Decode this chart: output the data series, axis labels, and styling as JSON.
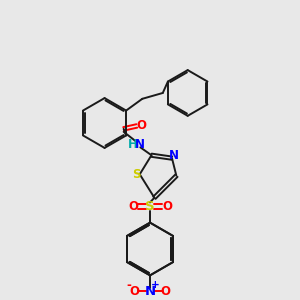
{
  "background_color": "#e8e8e8",
  "bond_color": "#1a1a1a",
  "N_color": "#0000ff",
  "O_color": "#ff0000",
  "S_color": "#cccc00",
  "NH_color": "#00aaaa",
  "figsize": [
    3.0,
    3.0
  ],
  "dpi": 100,
  "xlim": [
    0,
    10
  ],
  "ylim": [
    0,
    10
  ]
}
